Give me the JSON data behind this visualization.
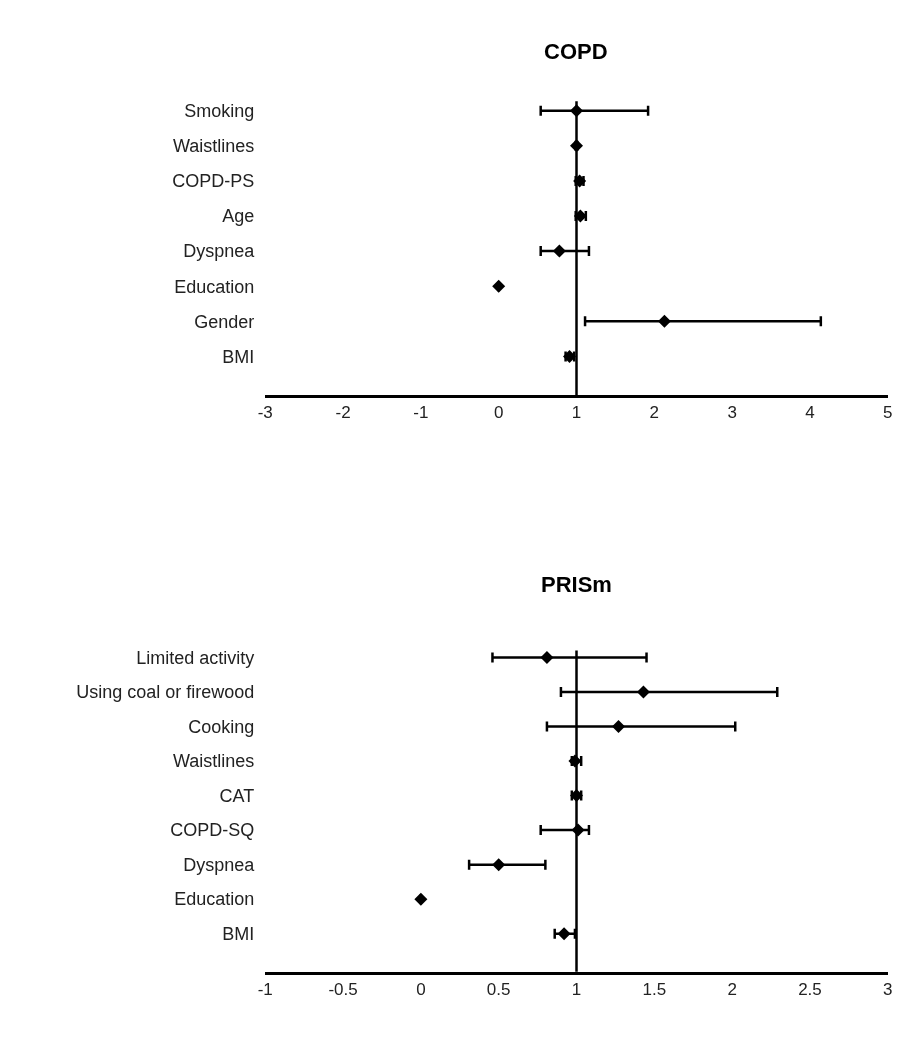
{
  "chart_data": [
    {
      "type": "scatter",
      "title": "COPD",
      "categories": [
        "Smoking",
        "Waistlines",
        "COPD-PS",
        "Age",
        "Dyspnea",
        "Education",
        "Gender",
        "BMI"
      ],
      "values": [
        1.0,
        1.0,
        1.04,
        1.05,
        0.78,
        0.0,
        2.13,
        0.91
      ],
      "errors": [
        [
          0.54,
          1.92
        ],
        [
          0.99,
          1.01
        ],
        [
          0.99,
          1.09
        ],
        [
          0.99,
          1.12
        ],
        [
          0.54,
          1.16
        ],
        null,
        [
          1.11,
          4.14
        ],
        [
          0.86,
          0.97
        ]
      ],
      "color": "#000000",
      "marker": "diamond",
      "orientation": "horizontal",
      "xlim": [
        -3,
        5
      ],
      "xticks": [
        -3,
        -2,
        -1,
        0,
        1,
        2,
        3,
        4,
        5
      ],
      "ref_lines": [
        {
          "axis": "x",
          "value": 1,
          "color": "#000000"
        }
      ]
    },
    {
      "type": "scatter",
      "title": "PRISm",
      "categories": [
        "Limited activity",
        "Using coal or firewood",
        "Cooking",
        "Waistlines",
        "CAT",
        "COPD-SQ",
        "Dyspnea",
        "Education",
        "BMI"
      ],
      "values": [
        0.81,
        1.43,
        1.27,
        0.99,
        1.0,
        1.01,
        0.5,
        0.0,
        0.92
      ],
      "errors": [
        [
          0.46,
          1.45
        ],
        [
          0.9,
          2.29
        ],
        [
          0.81,
          2.02
        ],
        [
          0.97,
          1.03
        ],
        [
          0.97,
          1.03
        ],
        [
          0.77,
          1.08
        ],
        [
          0.31,
          0.8
        ],
        null,
        [
          0.86,
          0.99
        ]
      ],
      "color": "#000000",
      "marker": "diamond",
      "orientation": "horizontal",
      "xlim": [
        -1,
        3
      ],
      "xticks": [
        -1,
        -0.5,
        0,
        0.5,
        1,
        1.5,
        2,
        2.5,
        3
      ],
      "ref_lines": [
        {
          "axis": "x",
          "value": 1,
          "color": "#000000"
        }
      ]
    }
  ]
}
